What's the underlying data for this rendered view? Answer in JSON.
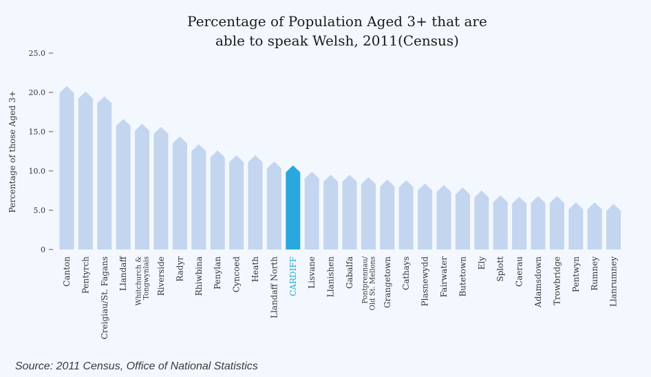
{
  "title_lines": [
    "Percentage of Population Aged 3+ that are",
    "able to speak Welsh, 2011(Census)"
  ],
  "source": "Source: 2011 Census, Office of National Statistics",
  "colors": {
    "background": "#f2f8fd",
    "bar": "#c3d5ef",
    "highlight": "#29a8e0",
    "highlight_label": "#29a8e0",
    "axis_text": "#333333"
  },
  "chart_data": {
    "type": "bar",
    "title": "Percentage of Population Aged 3+ that are able to speak Welsh, 2011(Census)",
    "xlabel": "",
    "ylabel": "Percentage of those Aged 3+",
    "ylim": [
      0,
      25
    ],
    "yticks": [
      "0",
      "5.0",
      "10.0",
      "15.0",
      "20.0",
      "25.0"
    ],
    "ytick_values": [
      0,
      5,
      10,
      15,
      20,
      25
    ],
    "grid": false,
    "highlight": "CARDIFF",
    "categories": [
      "Canton",
      "Pentyrch",
      "Creigiau/St. Fagans",
      "Llandaff",
      "Whitchurch & Tongwynlais",
      "Riverside",
      "Radyr",
      "Rhiwbina",
      "Penylan",
      "Cyncoed",
      "Heath",
      "Llandaff North",
      "CARDIFF",
      "Lisvane",
      "Llanishen",
      "Gabalfa",
      "Pontprennau/ Old St. Mellons",
      "Grangetown",
      "Cathays",
      "Plasnewydd",
      "Fairwater",
      "Butetown",
      "Ely",
      "Splott",
      "Caerau",
      "Adamsdown",
      "Trowbridge",
      "Pentwyn",
      "Rumney",
      "Llanrumney"
    ],
    "values": [
      20.8,
      20.1,
      19.5,
      16.6,
      16.0,
      15.6,
      14.4,
      13.4,
      12.6,
      12.0,
      12.0,
      11.2,
      10.7,
      9.9,
      9.5,
      9.5,
      9.2,
      8.9,
      8.8,
      8.4,
      8.2,
      7.9,
      7.5,
      6.9,
      6.7,
      6.8,
      6.8,
      6.0,
      6.0,
      5.8
    ]
  }
}
